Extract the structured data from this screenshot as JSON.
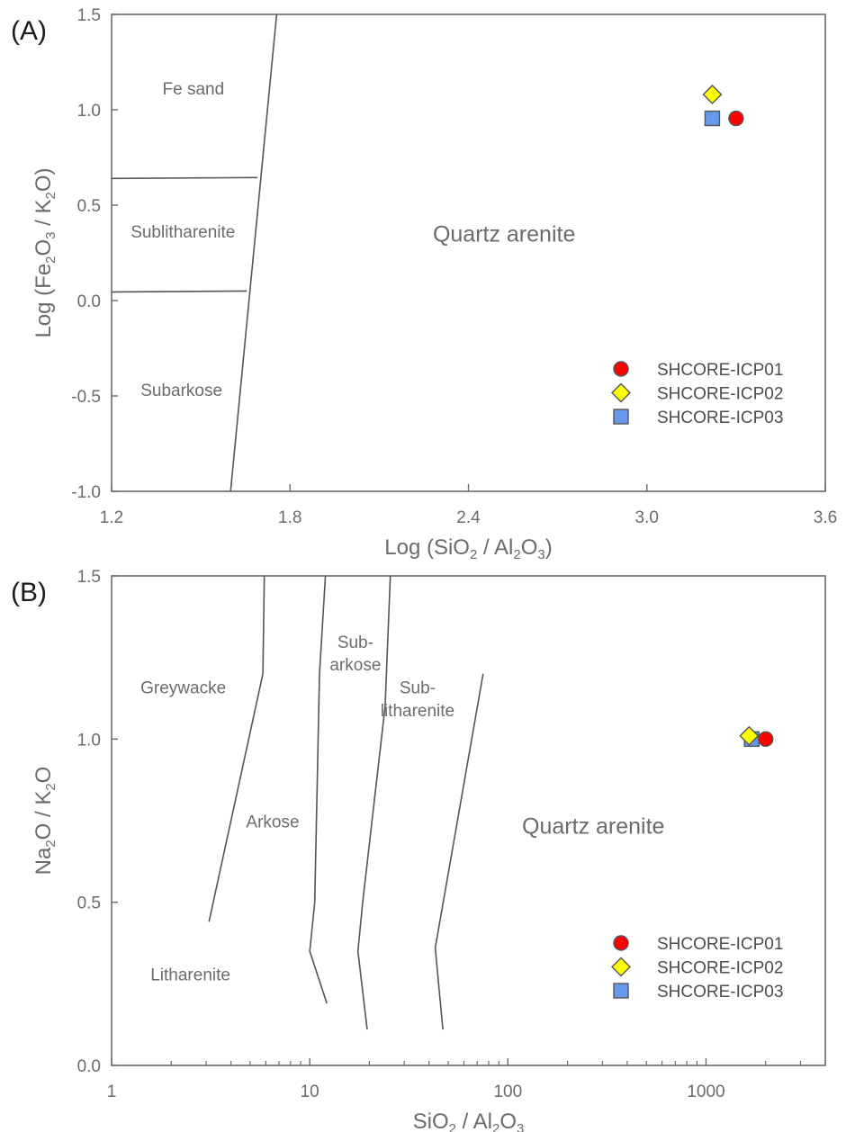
{
  "chart_data": [
    {
      "panel_label": "(A)",
      "type": "scatter",
      "x_scale": "linear",
      "xlim": [
        1.2,
        3.6
      ],
      "ylim": [
        -1.0,
        1.5
      ],
      "x_ticks": [
        1.2,
        1.8,
        2.4,
        3.0,
        3.6
      ],
      "x_tick_labels": [
        "1.2",
        "1.8",
        "2.4",
        "3.0",
        "3.6"
      ],
      "y_ticks": [
        1.5,
        1.0,
        0.5,
        0.0,
        -0.5,
        -1.0
      ],
      "y_tick_labels": [
        "1.5",
        "1.0",
        "0.5",
        "0.0",
        "-0.5",
        "-1.0"
      ],
      "xlabel": {
        "prefix": "Log (SiO",
        "sub1": "2",
        "middle": " / Al",
        "sub2": "2",
        "middle2": "O",
        "sub3": "3",
        "suffix": ")"
      },
      "ylabel": {
        "prefix": "Log (Fe",
        "sub1": "2",
        "middle": "O",
        "sub2": "3",
        "middle2": " / K",
        "sub3": "2",
        "suffix": "O)"
      },
      "boundaries": [
        [
          [
            1.6,
            -1.0
          ],
          [
            1.755,
            1.5
          ]
        ],
        [
          [
            1.2,
            0.64
          ],
          [
            1.69,
            0.645
          ]
        ],
        [
          [
            1.2,
            0.045
          ],
          [
            1.655,
            0.05
          ]
        ]
      ],
      "regions": [
        {
          "label": "Fe sand",
          "x": 1.475,
          "y": 1.08,
          "big": false
        },
        {
          "label": "Sublitharenite",
          "x": 1.44,
          "y": 0.33,
          "big": false
        },
        {
          "label": "Subarkose",
          "x": 1.435,
          "y": -0.5,
          "big": false
        },
        {
          "label": "Quartz arenite",
          "x": 2.52,
          "y": 0.31,
          "big": true
        }
      ],
      "series": [
        {
          "name": "SHCORE-ICP01",
          "marker": "circle",
          "color": "#ff0000",
          "points": [
            [
              3.3,
              0.955
            ]
          ]
        },
        {
          "name": "SHCORE-ICP02",
          "marker": "diamond",
          "color": "#ffff00",
          "points": [
            [
              3.22,
              1.08
            ]
          ]
        },
        {
          "name": "SHCORE-ICP03",
          "marker": "square",
          "color": "#6699ee",
          "points": [
            [
              3.22,
              0.955
            ]
          ]
        }
      ],
      "legend_position": "bottom-right"
    },
    {
      "panel_label": "(B)",
      "type": "scatter",
      "x_scale": "log",
      "xlim": [
        1,
        4000
      ],
      "ylim": [
        0.0,
        1.5
      ],
      "x_ticks": [
        1,
        10,
        100,
        1000
      ],
      "x_tick_labels": [
        "1",
        "10",
        "100",
        "1000"
      ],
      "y_ticks": [
        1.5,
        1.0,
        0.5,
        0.0
      ],
      "y_tick_labels": [
        "1.5",
        "1.0",
        "0.5",
        "0.0"
      ],
      "xlabel": {
        "prefix": "SiO",
        "sub1": "2",
        "middle": " / Al",
        "sub2": "2",
        "middle2": "O",
        "sub3": "3",
        "suffix": ""
      },
      "ylabel": {
        "prefix": "Na",
        "sub1": "2",
        "middle": "O / K",
        "sub2": "2",
        "middle2": "O",
        "sub3": "",
        "suffix": ""
      },
      "boundaries": [
        [
          [
            3.1,
            0.44
          ],
          [
            5.8,
            1.2
          ],
          [
            5.9,
            1.5
          ]
        ],
        [
          [
            12.2,
            0.19
          ],
          [
            10.0,
            0.35
          ],
          [
            10.6,
            0.5
          ],
          [
            11.2,
            1.2
          ],
          [
            12.0,
            1.5
          ]
        ],
        [
          [
            19.5,
            0.11
          ],
          [
            17.5,
            0.35
          ],
          [
            18.5,
            0.5
          ],
          [
            24.0,
            1.1
          ],
          [
            25.5,
            1.5
          ]
        ],
        [
          [
            47.0,
            0.11
          ],
          [
            43.0,
            0.36
          ],
          [
            75.0,
            1.2
          ]
        ]
      ],
      "regions": [
        {
          "label": "Greywacke",
          "x": 2.3,
          "y": 1.14,
          "big": false
        },
        {
          "label": "Arkose",
          "x": 6.5,
          "y": 0.73,
          "big": false
        },
        {
          "label": "Litharenite",
          "x": 2.5,
          "y": 0.26,
          "big": false
        },
        {
          "label": "Sub-",
          "x": 17.0,
          "y": 1.28,
          "big": false
        },
        {
          "label": "arkose",
          "x": 17.0,
          "y": 1.21,
          "big": false
        },
        {
          "label": "Sub-",
          "x": 35.0,
          "y": 1.14,
          "big": false
        },
        {
          "label": "litharenite",
          "x": 35.0,
          "y": 1.07,
          "big": false
        },
        {
          "label": "Quartz arenite",
          "x": 270,
          "y": 0.71,
          "big": true
        }
      ],
      "series": [
        {
          "name": "SHCORE-ICP01",
          "marker": "circle",
          "color": "#ff0000",
          "points": [
            [
              2000,
              1.0
            ]
          ]
        },
        {
          "name": "SHCORE-ICP02",
          "marker": "diamond",
          "color": "#ffff00",
          "points": [
            [
              1650,
              1.01
            ]
          ]
        },
        {
          "name": "SHCORE-ICP03",
          "marker": "square",
          "color": "#6699ee",
          "points": [
            [
              1700,
              1.0
            ]
          ]
        }
      ],
      "legend_position": "bottom-right"
    }
  ]
}
